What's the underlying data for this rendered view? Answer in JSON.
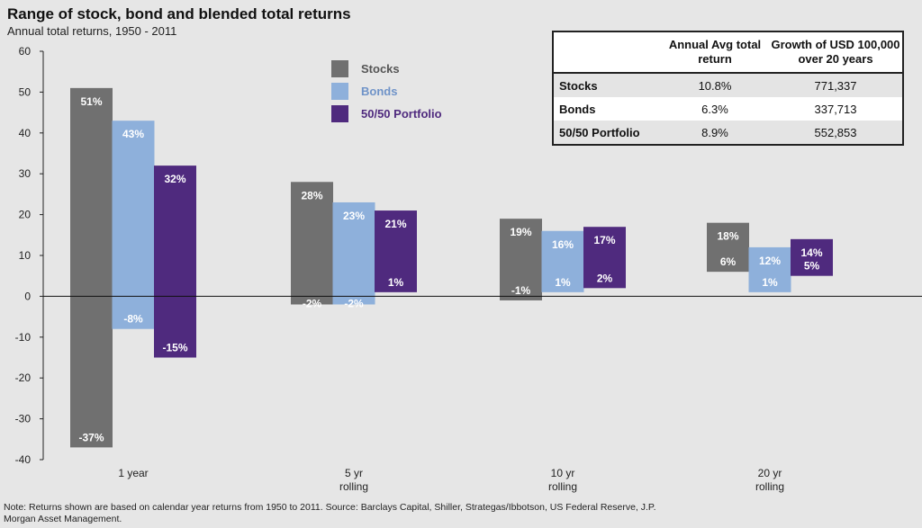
{
  "title": "Range of stock, bond and blended total returns",
  "subtitle": "Annual total returns, 1950 - 2011",
  "footnote": "Note: Returns shown are based on calendar year returns from 1950 to 2011. Source: Barclays Capital, Shiller, Strategas/Ibbotson, US Federal Reserve, J.P. Morgan Asset Management.",
  "colors": {
    "stocks": "#707070",
    "bonds": "#8eb0db",
    "portfolio": "#4f2a7e"
  },
  "legend": [
    {
      "label": "Stocks",
      "color": "#707070",
      "text_color": "#555555"
    },
    {
      "label": "Bonds",
      "color": "#8eb0db",
      "text_color": "#6f93c8"
    },
    {
      "label": "50/50 Portfolio",
      "color": "#4f2a7e",
      "text_color": "#4f2a7e"
    }
  ],
  "table": {
    "headers": [
      "",
      "Annual Avg total return",
      "Growth of USD 100,000 over 20 years"
    ],
    "rows": [
      {
        "name": "Stocks",
        "avg": "10.8%",
        "growth": "771,337"
      },
      {
        "name": "Bonds",
        "avg": "6.3%",
        "growth": "337,713"
      },
      {
        "name": "50/50 Portfolio",
        "avg": "8.9%",
        "growth": "552,853"
      }
    ]
  },
  "chart_data": {
    "type": "bar",
    "subtype": "floating-range",
    "title": "Range of stock, bond and blended total returns",
    "subtitle": "Annual total returns, 1950 - 2011",
    "ylim": [
      -40,
      60
    ],
    "yticks": [
      -40,
      -30,
      -20,
      -10,
      0,
      10,
      20,
      30,
      40,
      50,
      60
    ],
    "grid": false,
    "legend_position": "top-center",
    "categories": [
      "1 year",
      "5 yr rolling",
      "10 yr rolling",
      "20 yr rolling"
    ],
    "category_labels": [
      [
        "1 year"
      ],
      [
        "5 yr",
        "rolling"
      ],
      [
        "10 yr",
        "rolling"
      ],
      [
        "20 yr",
        "rolling"
      ]
    ],
    "series": [
      {
        "name": "Stocks",
        "color": "#707070",
        "max": [
          51,
          28,
          19,
          18
        ],
        "min": [
          -37,
          -2,
          -1,
          6
        ],
        "max_labels": [
          "51%",
          "28%",
          "19%",
          "18%"
        ],
        "min_labels": [
          "-37%",
          "-2%",
          "-1%",
          "6%"
        ]
      },
      {
        "name": "Bonds",
        "color": "#8eb0db",
        "max": [
          43,
          23,
          16,
          12
        ],
        "min": [
          -8,
          -2,
          1,
          1
        ],
        "max_labels": [
          "43%",
          "23%",
          "16%",
          "12%"
        ],
        "min_labels": [
          "-8%",
          "-2%",
          "1%",
          "1%"
        ]
      },
      {
        "name": "50/50 Portfolio",
        "color": "#4f2a7e",
        "max": [
          32,
          21,
          17,
          14
        ],
        "min": [
          -15,
          1,
          2,
          5
        ],
        "max_labels": [
          "32%",
          "21%",
          "17%",
          "14%"
        ],
        "min_labels": [
          "-15%",
          "1%",
          "2%",
          "5%"
        ]
      }
    ]
  }
}
